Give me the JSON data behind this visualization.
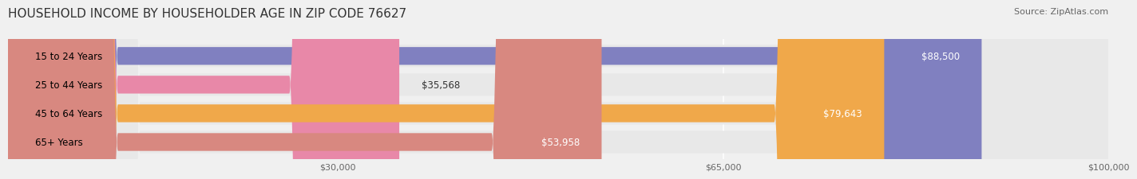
{
  "title": "HOUSEHOLD INCOME BY HOUSEHOLDER AGE IN ZIP CODE 76627",
  "source": "Source: ZipAtlas.com",
  "categories": [
    "15 to 24 Years",
    "25 to 44 Years",
    "45 to 64 Years",
    "65+ Years"
  ],
  "values": [
    88500,
    35568,
    79643,
    53958
  ],
  "bar_colors": [
    "#8080c0",
    "#e888a8",
    "#f0a84a",
    "#d88880"
  ],
  "bar_edge_colors": [
    "#9090d0",
    "#f098b8",
    "#f8b85a",
    "#e09890"
  ],
  "label_colors": [
    "#ffffff",
    "#333333",
    "#ffffff",
    "#333333"
  ],
  "xlim": [
    0,
    100000
  ],
  "xticks": [
    30000,
    65000,
    100000
  ],
  "xtick_labels": [
    "$30,000",
    "$65,000",
    "$100,000"
  ],
  "background_color": "#f0f0f0",
  "bar_bg_color": "#e8e8e8",
  "title_fontsize": 11,
  "source_fontsize": 8,
  "label_fontsize": 8.5,
  "tick_fontsize": 8
}
